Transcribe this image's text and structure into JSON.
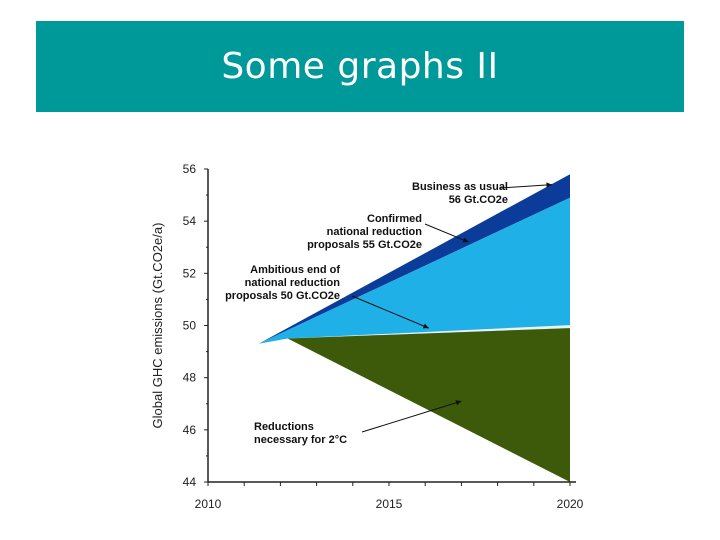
{
  "slide": {
    "title": "Some graphs II"
  },
  "chart_data": {
    "type": "area",
    "xlabel": "",
    "ylabel": "Global GHC emissions (Gt.CO2e/a)",
    "xlim": [
      2010,
      2020
    ],
    "ylim": [
      44,
      56
    ],
    "x_ticks": [
      2010,
      2015,
      2020
    ],
    "y_ticks": [
      44,
      46,
      48,
      50,
      52,
      54,
      56
    ],
    "grid": false,
    "colors": {
      "business_as_usual": "#0b3c99",
      "confirmed_reductions": "#20b0e8",
      "ambitious_reductions": "#e8f4f4",
      "necessary_reductions": "#3d5a0a"
    },
    "series": [
      {
        "key": "business_as_usual",
        "x": [
          2011.4,
          2020
        ],
        "y": [
          49.3,
          55.8
        ]
      },
      {
        "key": "confirmed_reductions",
        "x": [
          2011.4,
          2020
        ],
        "y": [
          49.3,
          54.9
        ]
      },
      {
        "key": "ambitious_reductions",
        "x": [
          2012.2,
          2020
        ],
        "y": [
          49.5,
          49.9
        ]
      },
      {
        "key": "necessary_reductions",
        "x": [
          2012.2,
          2020
        ],
        "y": [
          49.5,
          44.0
        ]
      }
    ],
    "annotations": [
      {
        "key": "bau",
        "lines": [
          "Business as usual",
          "56 Gt.CO2e"
        ],
        "target": [
          2019.5,
          55.4
        ]
      },
      {
        "key": "confirmed",
        "lines": [
          "Confirmed",
          "national reduction",
          "proposals 55 Gt.CO2e"
        ],
        "target": [
          2017.2,
          53.2
        ]
      },
      {
        "key": "ambitious",
        "lines": [
          "Ambitious end of",
          "national reduction",
          "proposals 50 Gt.CO2e"
        ],
        "target": [
          2016.1,
          49.9
        ]
      },
      {
        "key": "necessary",
        "lines": [
          "Reductions",
          "necessary for 2°C"
        ],
        "target": [
          2017.0,
          47.1
        ]
      }
    ]
  }
}
